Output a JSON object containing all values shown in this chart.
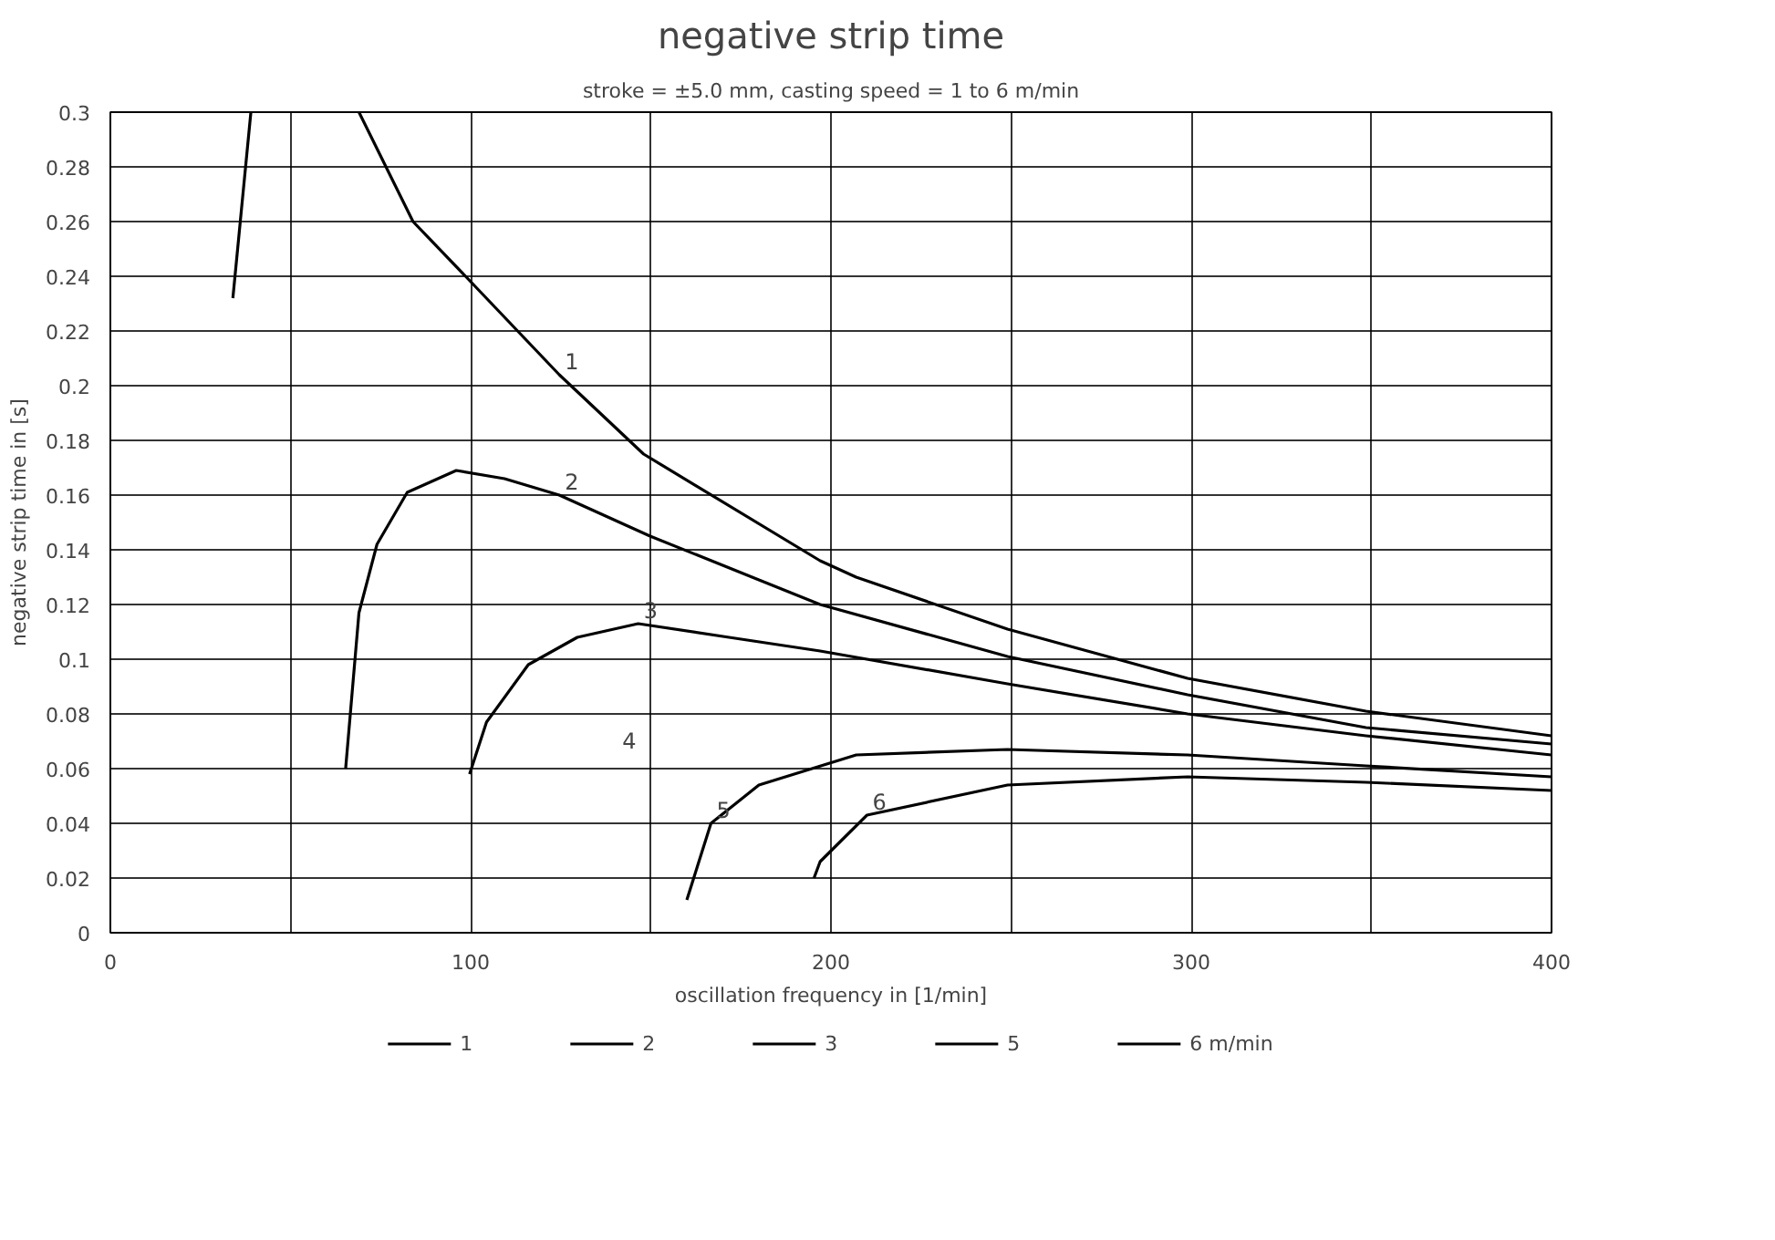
{
  "chart_data": {
    "type": "line",
    "title": "negative strip time",
    "subtitle": "stroke = ±5.0 mm, casting speed = 1 to 6 m/min",
    "xlabel": "oscillation frequency in [1/min]",
    "ylabel": "negative strip time in [s]",
    "xlim": [
      0,
      400
    ],
    "ylim": [
      0,
      0.3
    ],
    "xticks": [
      0,
      {
        "value": 50,
        "label": null
      },
      100,
      {
        "value": 150,
        "label": null
      },
      200,
      {
        "value": 250,
        "label": null
      },
      300,
      {
        "value": 350,
        "label": null
      },
      400
    ],
    "yticks": [
      0,
      0.02,
      0.04,
      0.06,
      0.08,
      0.1,
      0.12,
      0.14,
      0.16,
      0.18,
      0.2,
      0.22,
      0.24,
      0.26,
      0.28,
      0.3
    ],
    "grid": true,
    "legend": "bottom",
    "marker": "none",
    "line_style": "solid",
    "series": [
      {
        "name": "1",
        "color": "#000000",
        "x": [
          34,
          39,
          50,
          69,
          84,
          99.3,
          124.6,
          148,
          197,
          207,
          249,
          299,
          348.5,
          400
        ],
        "values": [
          0.232,
          0.3,
          null,
          0.3,
          0.26,
          0.239,
          0.204,
          0.175,
          0.136,
          0.13,
          0.111,
          0.093,
          0.081,
          0.072
        ]
      },
      {
        "name": "2",
        "color": "#000000",
        "x": [
          65.3,
          69,
          74,
          82.4,
          96,
          109.4,
          124.6,
          149.8,
          180,
          197,
          249,
          299,
          348.5,
          400
        ],
        "values": [
          0.06,
          0.117,
          0.142,
          0.161,
          0.169,
          0.166,
          0.16,
          0.145,
          0.129,
          0.12,
          0.101,
          0.087,
          0.075,
          0.069
        ]
      },
      {
        "name": "3",
        "color": "#000000",
        "x": [
          99.7,
          104.4,
          116,
          129.6,
          146.5,
          171.7,
          197,
          249,
          299,
          348.5,
          400
        ],
        "values": [
          0.058,
          0.077,
          0.098,
          0.108,
          0.113,
          0.108,
          0.103,
          0.091,
          0.08,
          0.072,
          0.065
        ]
      },
      {
        "name": "5",
        "color": "#000000",
        "x": [
          160,
          166.7,
          180,
          207,
          249,
          299,
          348.5,
          400
        ],
        "values": [
          0.012,
          0.04,
          0.054,
          0.065,
          0.067,
          0.065,
          0.061,
          0.057
        ]
      },
      {
        "name": "6 m/min",
        "color": "#000000",
        "x": [
          195.3,
          197,
          210,
          249,
          299,
          348.5,
          400
        ],
        "values": [
          0.02,
          0.026,
          0.043,
          0.054,
          0.057,
          0.055,
          0.052
        ]
      }
    ],
    "annotations": [
      {
        "text": "1",
        "x": 124.6,
        "y": 0.204
      },
      {
        "text": "2",
        "x": 124.6,
        "y": 0.16
      },
      {
        "text": "3",
        "x": 146.5,
        "y": 0.113
      },
      "4",
      {
        "text": "5",
        "x": 166.7,
        "y": 0.04
      },
      {
        "text": "6",
        "x": 210,
        "y": 0.043
      }
    ]
  }
}
